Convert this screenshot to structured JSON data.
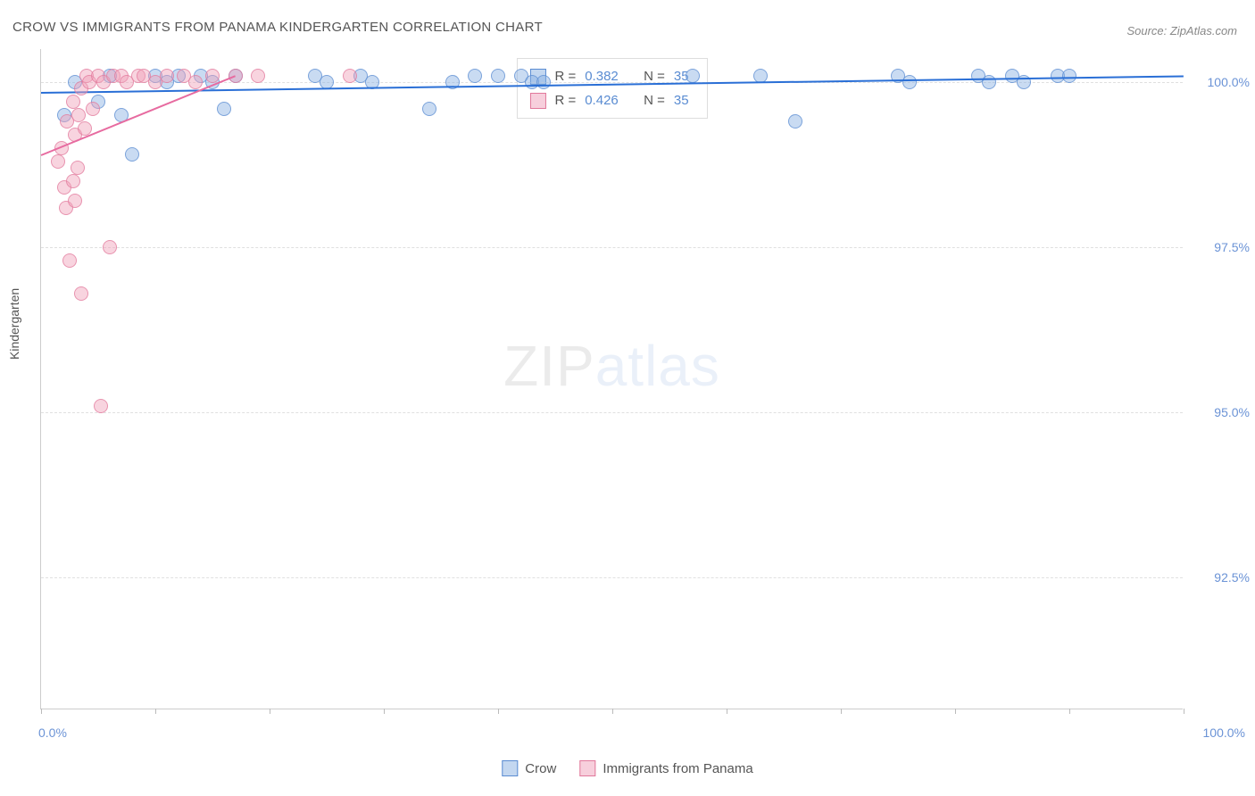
{
  "title": "CROW VS IMMIGRANTS FROM PANAMA KINDERGARTEN CORRELATION CHART",
  "source": "Source: ZipAtlas.com",
  "watermark_bold": "ZIP",
  "watermark_thin": "atlas",
  "yaxis_label": "Kindergarten",
  "chart": {
    "type": "scatter",
    "xlim": [
      0,
      100
    ],
    "ylim": [
      90.5,
      100.5
    ],
    "xtick_positions": [
      0,
      10,
      20,
      30,
      40,
      50,
      60,
      70,
      80,
      90,
      100
    ],
    "yticks": [
      {
        "value": 92.5,
        "label": "92.5%"
      },
      {
        "value": 95.0,
        "label": "95.0%"
      },
      {
        "value": 97.5,
        "label": "97.5%"
      },
      {
        "value": 100.0,
        "label": "100.0%"
      }
    ],
    "xaxis_min_label": "0.0%",
    "xaxis_max_label": "100.0%",
    "background_color": "#ffffff",
    "grid_color": "#e0e0e0",
    "series": [
      {
        "name": "Crow",
        "color_fill": "rgba(135,175,226,0.45)",
        "color_stroke": "#5a8cd2",
        "trend_color": "#2a6fd6",
        "trend": {
          "x1": 0,
          "y1": 99.85,
          "x2": 100,
          "y2": 100.1
        },
        "R": "0.382",
        "N": "35",
        "points": [
          {
            "x": 2,
            "y": 99.5
          },
          {
            "x": 3,
            "y": 100.0
          },
          {
            "x": 5,
            "y": 99.7
          },
          {
            "x": 6,
            "y": 100.1
          },
          {
            "x": 7,
            "y": 99.5
          },
          {
            "x": 8,
            "y": 98.9
          },
          {
            "x": 10,
            "y": 100.1
          },
          {
            "x": 11,
            "y": 100.0
          },
          {
            "x": 12,
            "y": 100.1
          },
          {
            "x": 14,
            "y": 100.1
          },
          {
            "x": 15,
            "y": 100.0
          },
          {
            "x": 16,
            "y": 99.6
          },
          {
            "x": 17,
            "y": 100.1
          },
          {
            "x": 24,
            "y": 100.1
          },
          {
            "x": 25,
            "y": 100.0
          },
          {
            "x": 28,
            "y": 100.1
          },
          {
            "x": 29,
            "y": 100.0
          },
          {
            "x": 34,
            "y": 99.6
          },
          {
            "x": 36,
            "y": 100.0
          },
          {
            "x": 38,
            "y": 100.1
          },
          {
            "x": 40,
            "y": 100.1
          },
          {
            "x": 42,
            "y": 100.1
          },
          {
            "x": 43,
            "y": 100.0
          },
          {
            "x": 44,
            "y": 100.0
          },
          {
            "x": 57,
            "y": 100.1
          },
          {
            "x": 63,
            "y": 100.1
          },
          {
            "x": 66,
            "y": 99.4
          },
          {
            "x": 75,
            "y": 100.1
          },
          {
            "x": 76,
            "y": 100.0
          },
          {
            "x": 82,
            "y": 100.1
          },
          {
            "x": 83,
            "y": 100.0
          },
          {
            "x": 85,
            "y": 100.1
          },
          {
            "x": 86,
            "y": 100.0
          },
          {
            "x": 89,
            "y": 100.1
          },
          {
            "x": 90,
            "y": 100.1
          }
        ]
      },
      {
        "name": "Immigrants from Panama",
        "color_fill": "rgba(240,160,185,0.45)",
        "color_stroke": "#e1789b",
        "trend_color": "#e76ba0",
        "trend": {
          "x1": 0,
          "y1": 98.9,
          "x2": 17,
          "y2": 100.1
        },
        "R": "0.426",
        "N": "35",
        "points": [
          {
            "x": 1.5,
            "y": 98.8
          },
          {
            "x": 1.8,
            "y": 99.0
          },
          {
            "x": 2.0,
            "y": 98.4
          },
          {
            "x": 2.2,
            "y": 98.1
          },
          {
            "x": 2.3,
            "y": 99.4
          },
          {
            "x": 2.5,
            "y": 97.3
          },
          {
            "x": 2.8,
            "y": 99.7
          },
          {
            "x": 2.8,
            "y": 98.5
          },
          {
            "x": 3.0,
            "y": 99.2
          },
          {
            "x": 3.0,
            "y": 98.2
          },
          {
            "x": 3.2,
            "y": 98.7
          },
          {
            "x": 3.3,
            "y": 99.5
          },
          {
            "x": 3.5,
            "y": 96.8
          },
          {
            "x": 3.5,
            "y": 99.9
          },
          {
            "x": 3.8,
            "y": 99.3
          },
          {
            "x": 4.0,
            "y": 100.1
          },
          {
            "x": 4.2,
            "y": 100.0
          },
          {
            "x": 4.5,
            "y": 99.6
          },
          {
            "x": 5.0,
            "y": 100.1
          },
          {
            "x": 5.2,
            "y": 95.1
          },
          {
            "x": 5.5,
            "y": 100.0
          },
          {
            "x": 6.0,
            "y": 97.5
          },
          {
            "x": 6.3,
            "y": 100.1
          },
          {
            "x": 7.0,
            "y": 100.1
          },
          {
            "x": 7.5,
            "y": 100.0
          },
          {
            "x": 8.5,
            "y": 100.1
          },
          {
            "x": 9.0,
            "y": 100.1
          },
          {
            "x": 10.0,
            "y": 100.0
          },
          {
            "x": 11.0,
            "y": 100.1
          },
          {
            "x": 12.5,
            "y": 100.1
          },
          {
            "x": 13.5,
            "y": 100.0
          },
          {
            "x": 15.0,
            "y": 100.1
          },
          {
            "x": 17.0,
            "y": 100.1
          },
          {
            "x": 19.0,
            "y": 100.1
          },
          {
            "x": 27.0,
            "y": 100.1
          }
        ]
      }
    ]
  },
  "stats_label_R": "R =",
  "stats_label_N": "N =",
  "bottom_legend": [
    {
      "label": "Crow",
      "swatch": "blue"
    },
    {
      "label": "Immigrants from Panama",
      "swatch": "pink"
    }
  ]
}
